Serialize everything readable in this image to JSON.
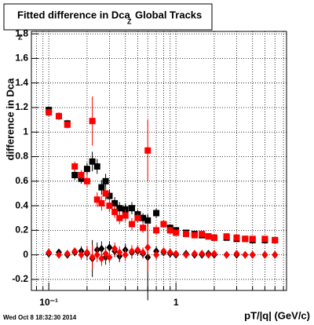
{
  "chart_data": {
    "type": "scatter",
    "title": "Fitted difference in Dca",
    "title_subscript": "Z",
    "title_suffix": "Global Tracks",
    "y_label": "difference in Dca",
    "y_label_subscript": "Z",
    "x_label": "pT/|q| (GeV/c)",
    "footer": "Wed Oct  8 18:32:30 2014",
    "log_x": true,
    "grid": true,
    "xlim": [
      0.073,
      7.4
    ],
    "ylim": [
      -0.29,
      1.82
    ],
    "xticks": [
      {
        "value": 0.1,
        "label": "10⁻¹"
      },
      1
    ],
    "minor_xticks": [
      0.08,
      0.09,
      0.2,
      0.3,
      0.4,
      0.5,
      0.6,
      0.7,
      0.8,
      0.9,
      2,
      3,
      4,
      5,
      6,
      7
    ],
    "yticks": [
      -0.2,
      0,
      0.2,
      0.4,
      0.6,
      0.8,
      1,
      1.2,
      1.4,
      1.6,
      1.8
    ],
    "x": [
      0.1,
      0.12,
      0.14,
      0.16,
      0.18,
      0.2,
      0.22,
      0.24,
      0.26,
      0.28,
      0.3,
      0.33,
      0.36,
      0.4,
      0.45,
      0.5,
      0.55,
      0.6,
      0.7,
      0.8,
      0.9,
      1.0,
      1.2,
      1.4,
      1.6,
      1.8,
      2.0,
      2.5,
      3.0,
      3.5,
      4.0,
      5.0,
      6.0
    ],
    "series": [
      {
        "color": "#000000",
        "marker": "square",
        "values": [
          1.18,
          1.13,
          1.07,
          0.65,
          0.62,
          0.7,
          0.76,
          0.72,
          0.55,
          0.6,
          0.48,
          0.42,
          0.38,
          0.37,
          0.38,
          0.33,
          0.3,
          0.28,
          0.34,
          0.25,
          0.22,
          0.2,
          0.18,
          0.17,
          0.16,
          0.15,
          0.14,
          0.14,
          0.13,
          0.13,
          0.12,
          0.12,
          0.12
        ],
        "errors": [
          0.03,
          0.03,
          0.03,
          0.04,
          0.04,
          0.05,
          0.08,
          0.06,
          0.06,
          0.06,
          0.05,
          0.05,
          0.05,
          0.05,
          0.05,
          0.04,
          0.04,
          0.05,
          0.04,
          0.03,
          0.03,
          0.02,
          0.02,
          0.02,
          0.02,
          0.02,
          0.02,
          0.02,
          0.02,
          0.02,
          0.02,
          0.02,
          0.02
        ]
      },
      {
        "color": "#ff0000",
        "marker": "square",
        "values": [
          1.16,
          1.13,
          1.06,
          0.72,
          0.65,
          0.6,
          1.09,
          0.45,
          0.42,
          0.5,
          0.4,
          0.35,
          0.3,
          0.32,
          0.25,
          0.3,
          0.22,
          0.85,
          0.2,
          0.25,
          0.2,
          0.18,
          0.17,
          0.16,
          0.17,
          0.15,
          0.14,
          0.15,
          0.14,
          0.13,
          0.13,
          0.13,
          0.12
        ],
        "errors": [
          0.03,
          0.03,
          0.03,
          0.04,
          0.04,
          0.05,
          0.2,
          0.06,
          0.06,
          0.06,
          0.05,
          0.05,
          0.05,
          0.05,
          0.05,
          0.04,
          0.04,
          0.25,
          0.04,
          0.03,
          0.03,
          0.02,
          0.02,
          0.02,
          0.02,
          0.02,
          0.02,
          0.02,
          0.02,
          0.02,
          0.02,
          0.02,
          0.02
        ]
      },
      {
        "color": "#000000",
        "marker": "diamond",
        "values": [
          0.01,
          0.02,
          0.0,
          0.02,
          0.03,
          0.01,
          -0.03,
          0.04,
          0.05,
          -0.02,
          0.06,
          0.03,
          -0.01,
          0.04,
          0.02,
          0.03,
          0.01,
          -0.02,
          0.03,
          0.02,
          0.01,
          0.0,
          0.01,
          0.0,
          0.0,
          0.01,
          0.0,
          0.0,
          0.0,
          0.0,
          0.0,
          0.0,
          0.0
        ],
        "errors": [
          0.02,
          0.02,
          0.02,
          0.03,
          0.04,
          0.05,
          0.15,
          0.06,
          0.06,
          0.06,
          0.05,
          0.05,
          0.05,
          0.05,
          0.05,
          0.04,
          0.04,
          0.35,
          0.04,
          0.03,
          0.03,
          0.02,
          0.02,
          0.02,
          0.02,
          0.02,
          0.02,
          0.02,
          0.02,
          0.02,
          0.02,
          0.02,
          0.02
        ]
      },
      {
        "color": "#ff0000",
        "marker": "diamond",
        "values": [
          0.02,
          0.0,
          0.01,
          0.03,
          0.0,
          0.02,
          -0.02,
          0.0,
          -0.03,
          0.01,
          -0.02,
          0.05,
          0.02,
          0.0,
          0.03,
          0.04,
          0.02,
          0.06,
          0.0,
          0.03,
          0.02,
          0.01,
          0.0,
          0.01,
          0.01,
          0.0,
          0.01,
          0.0,
          0.01,
          0.0,
          0.0,
          0.0,
          0.0
        ],
        "errors": [
          0.02,
          0.02,
          0.02,
          0.03,
          0.04,
          0.05,
          0.1,
          0.06,
          0.06,
          0.06,
          0.05,
          0.05,
          0.05,
          0.05,
          0.05,
          0.04,
          0.04,
          0.2,
          0.04,
          0.03,
          0.03,
          0.02,
          0.02,
          0.02,
          0.02,
          0.02,
          0.02,
          0.02,
          0.02,
          0.02,
          0.02,
          0.02,
          0.02
        ]
      }
    ]
  }
}
